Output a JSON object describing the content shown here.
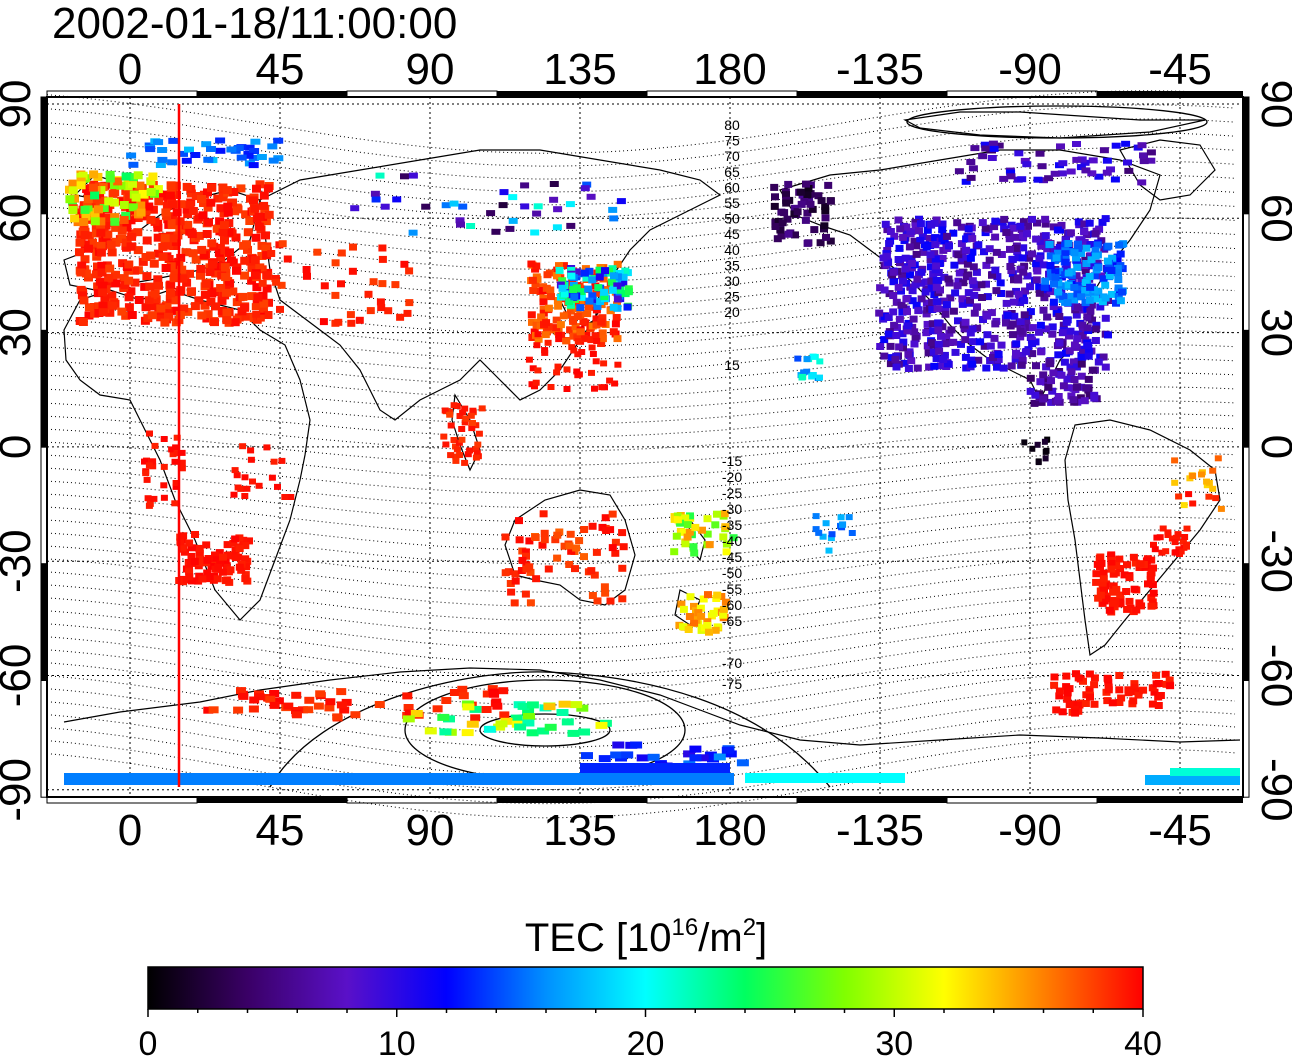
{
  "title": "2002-01-18/11:00:00",
  "map": {
    "lon_ticks_top": [
      "0",
      "45",
      "90",
      "135",
      "180",
      "-135",
      "-90",
      "-45"
    ],
    "lon_ticks_bottom": [
      "0",
      "45",
      "90",
      "135",
      "180",
      "-135",
      "-90",
      "-45"
    ],
    "lat_ticks_left": [
      "90",
      "60",
      "30",
      "0",
      "-30",
      "-60",
      "-90"
    ],
    "lat_ticks_right": [
      "90",
      "60",
      "30",
      "0",
      "-30",
      "-60",
      "-90"
    ],
    "contour_labels_north": [
      "80",
      "75",
      "70",
      "65",
      "60",
      "55",
      "50",
      "45",
      "40",
      "35",
      "30",
      "25",
      "20",
      "15"
    ],
    "contour_labels_south": [
      "-15",
      "-20",
      "-25",
      "-30",
      "-35",
      "-40",
      "-45",
      "-50",
      "-55",
      "-60",
      "-65",
      "-70",
      "-75"
    ],
    "marker_line_color": "#ff0000"
  },
  "colorbar": {
    "label_main": "TEC  [10",
    "label_sup1": "16",
    "label_mid": "/m",
    "label_sup2": "2",
    "label_end": "]",
    "ticks": [
      "0",
      "10",
      "20",
      "30",
      "40"
    ],
    "min": 0,
    "max": 40,
    "stops": [
      "#000000",
      "#3a0066",
      "#5a10c8",
      "#0000ff",
      "#0090ff",
      "#00ffff",
      "#00ff60",
      "#80ff00",
      "#ffff00",
      "#ff8000",
      "#ff0000"
    ]
  }
}
